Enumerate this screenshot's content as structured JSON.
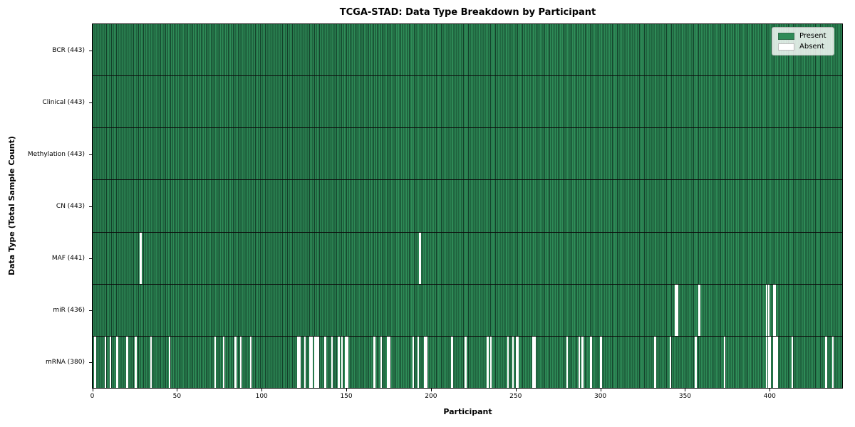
{
  "chart_data": {
    "type": "heatmap",
    "title": "TCGA-STAD: Data Type Breakdown by Participant",
    "xlabel": "Participant",
    "ylabel": "Data Type (Total Sample Count)",
    "n_participants": 443,
    "x_ticks": [
      0,
      50,
      100,
      150,
      200,
      250,
      300,
      350,
      400
    ],
    "x_range": [
      0,
      443
    ],
    "grid": false,
    "legend_position": "upper right",
    "legend": [
      {
        "label": "Present",
        "color": "#2e8b57"
      },
      {
        "label": "Absent",
        "color": "#ffffff"
      }
    ],
    "colors": {
      "present": "#2e8b57",
      "present_edge": "#13402a",
      "absent": "#ffffff"
    },
    "rows": [
      {
        "label": "BCR (443)",
        "data_type": "BCR",
        "total": 443,
        "absent": []
      },
      {
        "label": "Clinical (443)",
        "data_type": "Clinical",
        "total": 443,
        "absent": []
      },
      {
        "label": "Methylation (443)",
        "data_type": "Methylation",
        "total": 443,
        "absent": []
      },
      {
        "label": "CN (443)",
        "data_type": "CN",
        "total": 443,
        "absent": []
      },
      {
        "label": "MAF (441)",
        "data_type": "MAF",
        "total": 441,
        "absent": [
          28,
          193
        ]
      },
      {
        "label": "miR (436)",
        "data_type": "miR",
        "total": 436,
        "absent": [
          344,
          345,
          358,
          398,
          399,
          402,
          403
        ]
      },
      {
        "label": "mRNA (380)",
        "data_type": "mRNA",
        "total": 380,
        "absent": [
          1,
          7,
          10,
          14,
          20,
          25,
          34,
          45,
          72,
          77,
          84,
          87,
          93,
          121,
          122,
          125,
          128,
          129,
          131,
          132,
          133,
          137,
          141,
          145,
          147,
          149,
          150,
          166,
          170,
          174,
          175,
          189,
          192,
          196,
          197,
          212,
          220,
          233,
          235,
          245,
          248,
          250,
          251,
          260,
          261,
          280,
          287,
          289,
          294,
          300,
          332,
          341,
          356,
          373,
          398,
          399,
          400,
          402,
          403,
          404,
          413,
          433,
          437
        ]
      }
    ]
  }
}
